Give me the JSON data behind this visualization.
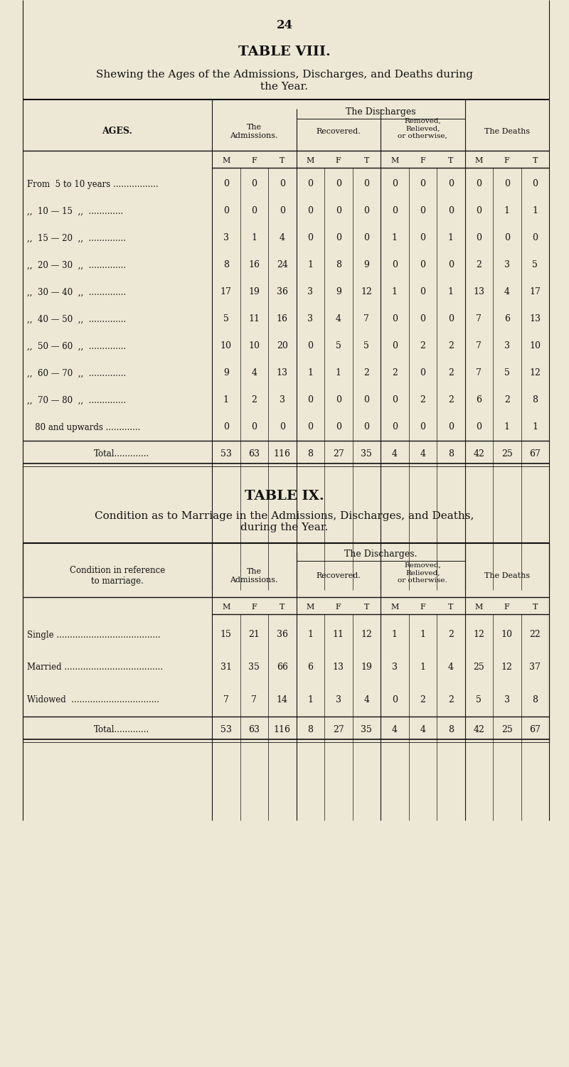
{
  "page_number": "24",
  "bg_color": "#ede8d5",
  "table8": {
    "title": "TABLE VIII.",
    "subtitle1": "Shewing the Ages of the Admissions, Discharges, and Deaths during",
    "subtitle2": "the Year.",
    "age_labels": [
      "From  5 to 10 years .................",
      ",,  10 — 15  ,,  .............",
      ",,  15 — 20  ,,  ..............",
      ",,  20 — 30  ,,  ..............",
      ",,  30 — 40  ,,  ..............",
      ",,  40 — 50  ,,  ..............",
      ",,  50 — 60  ,,  ..............",
      ",,  60 — 70  ,,  ..............",
      ",,  70 — 80  ,,  ..............",
      "   80 and upwards ............."
    ],
    "data": [
      [
        0,
        0,
        0,
        0,
        0,
        0,
        0,
        0,
        0,
        0,
        0,
        0
      ],
      [
        0,
        0,
        0,
        0,
        0,
        0,
        0,
        0,
        0,
        0,
        1,
        1
      ],
      [
        3,
        1,
        4,
        0,
        0,
        0,
        1,
        0,
        1,
        0,
        0,
        0
      ],
      [
        8,
        16,
        24,
        1,
        8,
        9,
        0,
        0,
        0,
        2,
        3,
        5
      ],
      [
        17,
        19,
        36,
        3,
        9,
        12,
        1,
        0,
        1,
        13,
        4,
        17
      ],
      [
        5,
        11,
        16,
        3,
        4,
        7,
        0,
        0,
        0,
        7,
        6,
        13
      ],
      [
        10,
        10,
        20,
        0,
        5,
        5,
        0,
        2,
        2,
        7,
        3,
        10
      ],
      [
        9,
        4,
        13,
        1,
        1,
        2,
        2,
        0,
        2,
        7,
        5,
        12
      ],
      [
        1,
        2,
        3,
        0,
        0,
        0,
        0,
        2,
        2,
        6,
        2,
        8
      ],
      [
        0,
        0,
        0,
        0,
        0,
        0,
        0,
        0,
        0,
        0,
        1,
        1
      ]
    ],
    "total": [
      53,
      63,
      116,
      8,
      27,
      35,
      4,
      4,
      8,
      42,
      25,
      67
    ]
  },
  "table9": {
    "title": "TABLE IX.",
    "subtitle1": "Condition as to Marriage in the Admissions, Discharges, and Deaths,",
    "subtitle2": "during the Year.",
    "row_labels": [
      "Single .......................................",
      "Married .....................................",
      "Widowed  ................................."
    ],
    "data": [
      [
        15,
        21,
        36,
        1,
        11,
        12,
        1,
        1,
        2,
        12,
        10,
        22
      ],
      [
        31,
        35,
        66,
        6,
        13,
        19,
        3,
        1,
        4,
        25,
        12,
        37
      ],
      [
        7,
        7,
        14,
        1,
        3,
        4,
        0,
        2,
        2,
        5,
        3,
        8
      ]
    ],
    "total": [
      53,
      63,
      116,
      8,
      27,
      35,
      4,
      4,
      8,
      42,
      25,
      67
    ]
  }
}
